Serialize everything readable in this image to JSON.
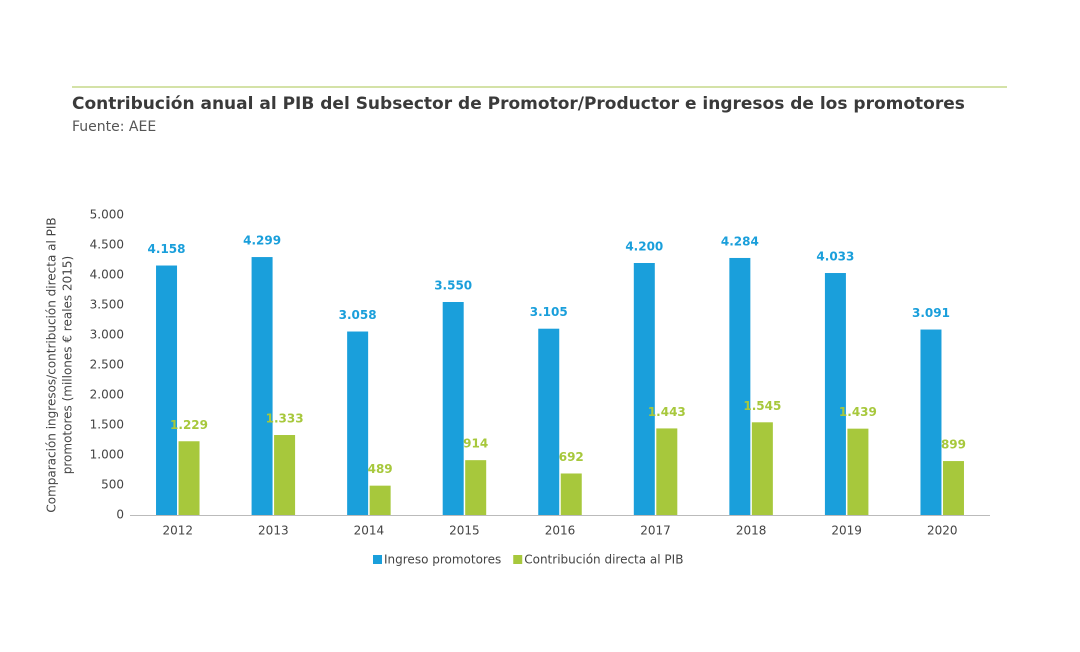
{
  "chart_data": {
    "type": "bar",
    "title": "Contribución anual al PIB del Subsector de Promotor/Productor e ingresos de los promotores",
    "subtitle": "Fuente: AEE",
    "ylabel": [
      "Comparación ingresos/contribución directa al PIB",
      "promotores (millones € reales 2015)"
    ],
    "categories": [
      "2012",
      "2013",
      "2014",
      "2015",
      "2016",
      "2017",
      "2018",
      "2019",
      "2020"
    ],
    "series": [
      {
        "name": "Ingreso promotores",
        "color": "#1a9fdb",
        "values": [
          4158,
          4299,
          3058,
          3550,
          3105,
          4200,
          4284,
          4033,
          3091
        ],
        "value_labels": [
          "4.158",
          "4.299",
          "3.058",
          "3.550",
          "3.105",
          "4.200",
          "4.284",
          "4.033",
          "3.091"
        ]
      },
      {
        "name": "Contribución directa al PIB",
        "color": "#a7c83c",
        "values": [
          1229,
          1333,
          489,
          914,
          692,
          1443,
          1545,
          1439,
          899
        ],
        "value_labels": [
          "1.229",
          "1.333",
          "489",
          "914",
          "692",
          "1.443",
          "1.545",
          "1.439",
          "899"
        ]
      }
    ],
    "ylim": [
      0,
      5000
    ],
    "yticks": [
      0,
      500,
      {
        "value": 1000,
        "label": "1.000"
      },
      {
        "value": 1500,
        "label": "1.500"
      },
      {
        "value": 2000,
        "label": "2.000"
      },
      {
        "value": 2500,
        "label": "2.500"
      },
      {
        "value": 3000,
        "label": "3.000"
      },
      {
        "value": 3500,
        "label": "3.500"
      },
      {
        "value": 4000,
        "label": "4.000"
      },
      {
        "value": 4500,
        "label": "4.500"
      },
      {
        "value": 5000,
        "label": "5.000"
      }
    ],
    "grid": false,
    "legend": "bottom"
  }
}
